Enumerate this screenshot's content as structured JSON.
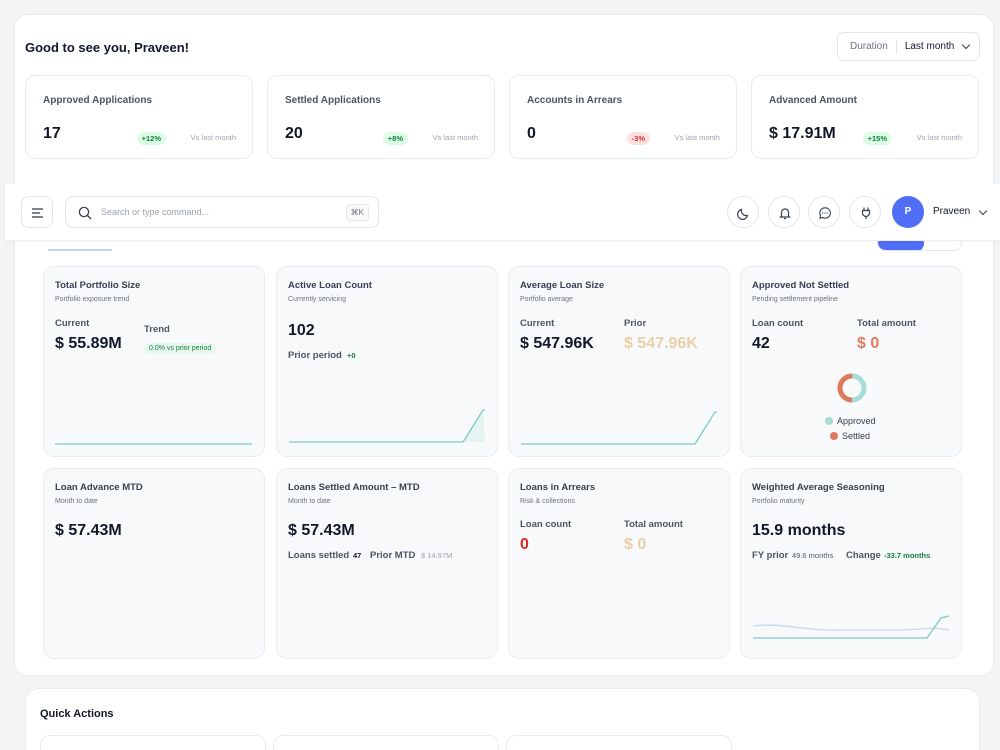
{
  "header": {
    "greeting": "Good to see you, Praveen!",
    "duration_label": "Duration",
    "duration_value": "Last month"
  },
  "summary": [
    {
      "title": "Approved Applications",
      "value": "17",
      "badge": "+12%",
      "trend": "positive",
      "vs": "Vs last month"
    },
    {
      "title": "Settled Applications",
      "value": "20",
      "badge": "+8%",
      "trend": "positive",
      "vs": "Vs last month"
    },
    {
      "title": "Accounts in Arrears",
      "value": "0",
      "badge": "-3%",
      "trend": "negative",
      "vs": "Vs last month"
    },
    {
      "title": "Advanced Amount",
      "value": "$ 17.91M",
      "badge": "+15%",
      "trend": "positive",
      "vs": "Vs last month"
    }
  ],
  "topbar": {
    "search_placeholder": "Search or type command...",
    "shortcut": "⌘K",
    "user_initial": "P",
    "user_name": "Praveen"
  },
  "cards": {
    "portfolio": {
      "title": "Total Portfolio Size",
      "subtitle": "Portfolio exposure trend",
      "current_label": "Current",
      "current_value": "$ 55.89M",
      "trend_label": "Trend",
      "trend_badge": "0.0% vs prior period"
    },
    "active": {
      "title": "Active Loan Count",
      "subtitle": "Currently servicing",
      "value": "102",
      "prior_label": "Prior period",
      "prior_value": "+0"
    },
    "avg": {
      "title": "Average Loan Size",
      "subtitle": "Portfolio average",
      "current_label": "Current",
      "current_value": "$ 547.96K",
      "prior_label": "Prior",
      "prior_value": "$ 547.96K"
    },
    "approved_ns": {
      "title": "Approved Not Settled",
      "subtitle": "Pending settlement pipeline",
      "count_label": "Loan count",
      "count_value": "42",
      "amount_label": "Total amount",
      "amount_value": "$ 0",
      "legend": [
        {
          "label": "Approved",
          "color": "#a7dbd6"
        },
        {
          "label": "Settled",
          "color": "#e07a5f"
        }
      ]
    },
    "advance": {
      "title": "Loan Advance MTD",
      "subtitle": "Month to date",
      "value": "$ 57.43M"
    },
    "settled_amt": {
      "title": "Loans Settled Amount – MTD",
      "subtitle": "Month to date",
      "value": "$ 57.43M",
      "settled_label": "Loans settled",
      "settled_value": "47",
      "prior_label": "Prior MTD",
      "prior_value": "$ 14.97M"
    },
    "arrears": {
      "title": "Loans in Arrears",
      "subtitle": "Risk & collections",
      "count_label": "Loan count",
      "count_value": "0",
      "amount_label": "Total amount",
      "amount_value": "$ 0"
    },
    "seasoning": {
      "title": "Weighted Average Seasoning",
      "subtitle": "Portfolio maturity",
      "value": "15.9 months",
      "fy_label": "FY prior",
      "fy_value": "49.6 months",
      "change_label": "Change",
      "change_value": "-33.7 months"
    }
  },
  "quick_actions": {
    "title": "Quick Actions"
  },
  "colors": {
    "accent": "#4f6df5",
    "positive": "#15803d",
    "negative": "#dc2626",
    "teal": "#7ccbc6",
    "muted_amount": "#e8cfa8",
    "orange": "#e07a5f"
  }
}
